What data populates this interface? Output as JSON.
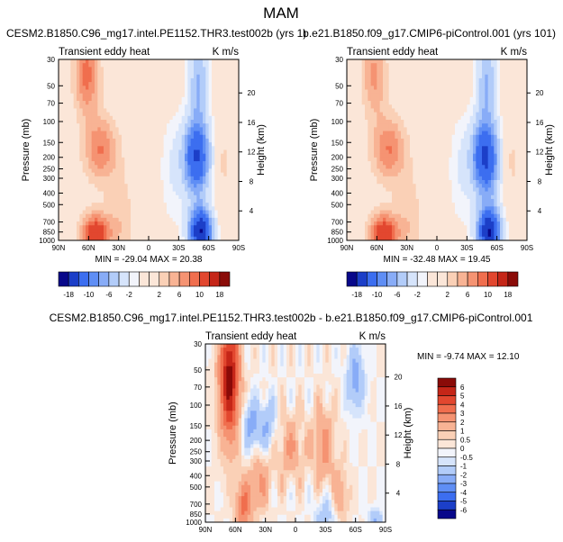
{
  "page_title": "MAM",
  "chart_data": [
    {
      "type": "heatmap",
      "title": "CESM2.B1850.C96_mg17.intel.PE1152.THR3.test002b (yrs 1)",
      "subtitle_left": "Transient eddy heat",
      "subtitle_right": "K m/s",
      "xlabel": "",
      "ylabel": "Pressure (mb)",
      "ylabel_right": "Height (km)",
      "x_ticks": [
        "90N",
        "60N",
        "30N",
        "0",
        "30S",
        "60S",
        "90S"
      ],
      "y_ticks": [
        "30",
        "50",
        "70",
        "100",
        "150",
        "200",
        "250",
        "300",
        "400",
        "500",
        "700",
        "850",
        "1000"
      ],
      "height_ticks": [
        "4",
        "8",
        "12",
        "16",
        "20"
      ],
      "stats": "MIN = -29.04   MAX = 20.38",
      "min": -29.04,
      "max": 20.38,
      "colorbar_labels": [
        "-18",
        "-10",
        "-6",
        "-2",
        "2",
        "6",
        "10",
        "18"
      ],
      "levels": [
        -18,
        -14,
        -10,
        -8,
        -6,
        -4,
        -2,
        -1,
        1,
        2,
        4,
        6,
        8,
        10,
        14,
        18
      ]
    },
    {
      "type": "heatmap",
      "title": "b.e21.B1850.f09_g17.CMIP6-piControl.001 (yrs 101)",
      "subtitle_left": "Transient eddy heat",
      "subtitle_right": "K m/s",
      "xlabel": "",
      "ylabel": "Pressure (mb)",
      "ylabel_right": "Height (km)",
      "x_ticks": [
        "90N",
        "60N",
        "30N",
        "0",
        "30S",
        "60S",
        "90S"
      ],
      "y_ticks": [
        "30",
        "50",
        "70",
        "100",
        "150",
        "200",
        "250",
        "300",
        "400",
        "500",
        "700",
        "850",
        "1000"
      ],
      "height_ticks": [
        "4",
        "8",
        "12",
        "16",
        "20"
      ],
      "stats": "MIN = -32.48   MAX = 19.45",
      "min": -32.48,
      "max": 19.45,
      "colorbar_labels": [
        "-18",
        "-10",
        "-6",
        "-2",
        "2",
        "6",
        "10",
        "18"
      ],
      "levels": [
        -18,
        -14,
        -10,
        -8,
        -6,
        -4,
        -2,
        -1,
        1,
        2,
        4,
        6,
        8,
        10,
        14,
        18
      ]
    },
    {
      "type": "heatmap",
      "title": "CESM2.B1850.C96_mg17.intel.PE1152.THR3.test002b - b.e21.B1850.f09_g17.CMIP6-piControl.001",
      "subtitle_left": "Transient eddy heat",
      "subtitle_right": "K m/s",
      "xlabel": "",
      "ylabel": "Pressure (mb)",
      "ylabel_right": "Height (km)",
      "x_ticks": [
        "90N",
        "60N",
        "30N",
        "0",
        "30S",
        "60S",
        "90S"
      ],
      "y_ticks": [
        "30",
        "50",
        "70",
        "100",
        "150",
        "200",
        "250",
        "300",
        "400",
        "500",
        "700",
        "850",
        "1000"
      ],
      "height_ticks": [
        "4",
        "8",
        "12",
        "16",
        "20"
      ],
      "stats": "MIN = -9.74   MAX = 12.10",
      "min": -9.74,
      "max": 12.1,
      "colorbar_labels": [
        "6",
        "5",
        "4",
        "3",
        "2",
        "1",
        "0.5",
        "0",
        "-0.5",
        "-1",
        "-2",
        "-3",
        "-4",
        "-5",
        "-6"
      ],
      "levels": [
        -6,
        -5,
        -4,
        -3,
        -2,
        -1,
        -0.5,
        0,
        0.5,
        1,
        2,
        3,
        4,
        5,
        6
      ]
    }
  ],
  "colors": {
    "palette": [
      "#08088a",
      "#1c3fc8",
      "#3c6ef0",
      "#5f8ef5",
      "#88acf7",
      "#b2ccf9",
      "#d6e4fb",
      "#f2f4fb",
      "#fbe6d8",
      "#fad0b6",
      "#f8b394",
      "#f59372",
      "#f06e4e",
      "#e2472f",
      "#c52618",
      "#8a0b08"
    ]
  }
}
